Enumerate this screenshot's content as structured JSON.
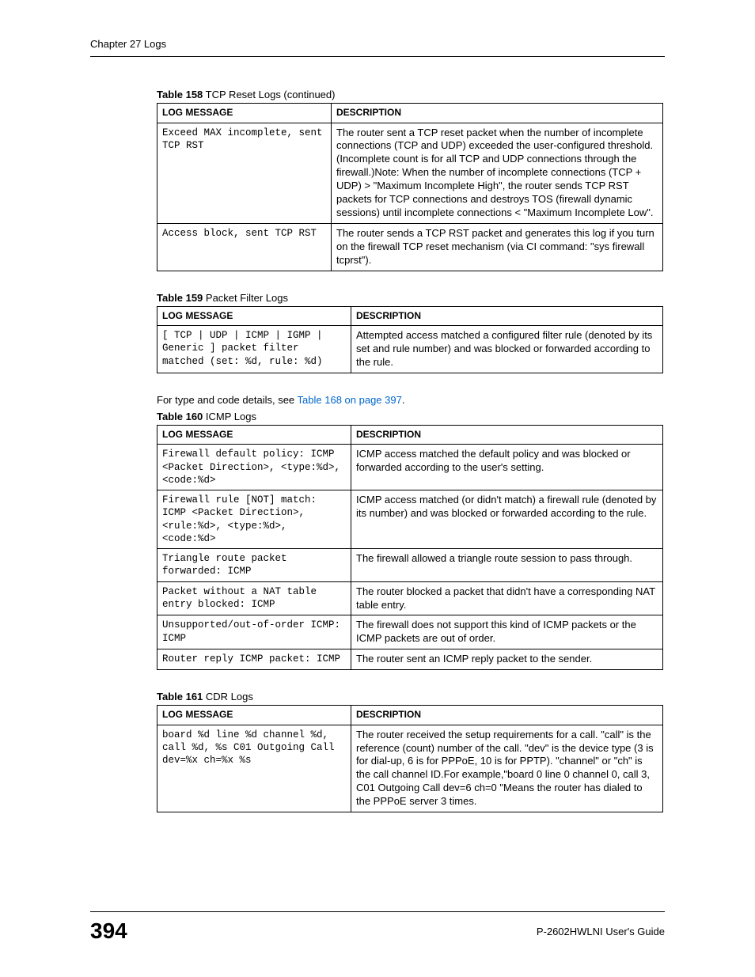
{
  "header": {
    "chapter": "Chapter 27 Logs"
  },
  "tables": {
    "t158": {
      "caption_num": "Table 158",
      "caption_title": "   TCP Reset Logs (continued)",
      "col_msg": "LOG MESSAGE",
      "col_desc": "DESCRIPTION",
      "rows": [
        {
          "msg": "Exceed MAX incomplete, sent TCP RST",
          "desc": "The router sent a TCP reset packet when the number of incomplete connections (TCP and UDP) exceeded the user-configured threshold. (Incomplete count is for all TCP and UDP connections through the firewall.)Note: When the number of incomplete connections (TCP + UDP) > \"Maximum Incomplete High\", the router sends TCP RST packets for TCP connections and destroys TOS (firewall dynamic sessions) until incomplete connections < \"Maximum Incomplete Low\"."
        },
        {
          "msg": "Access block, sent TCP RST",
          "desc": "The router sends a TCP RST packet and generates this log if you turn on the firewall TCP reset mechanism (via CI command: \"sys firewall tcprst\")."
        }
      ]
    },
    "t159": {
      "caption_num": "Table 159",
      "caption_title": "   Packet Filter Logs",
      "col_msg": "LOG MESSAGE",
      "col_desc": "DESCRIPTION",
      "rows": [
        {
          "msg": "[ TCP | UDP | ICMP | IGMP | Generic ] packet filter matched (set: %d, rule: %d)",
          "desc": "Attempted access matched a configured filter rule (denoted by its set and rule number) and was blocked or forwarded according to the rule."
        }
      ]
    },
    "intertext": {
      "pre": "For type and code details, see ",
      "link": "Table 168 on page 397",
      "post": "."
    },
    "t160": {
      "caption_num": "Table 160",
      "caption_title": "   ICMP Logs",
      "col_msg": "LOG MESSAGE",
      "col_desc": "DESCRIPTION",
      "rows": [
        {
          "msg": "Firewall default policy: ICMP <Packet Direction>, <type:%d>, <code:%d>",
          "desc": "ICMP access matched the default policy and was blocked or forwarded according to the user's setting."
        },
        {
          "msg": "Firewall rule [NOT] match: ICMP <Packet Direction>, <rule:%d>, <type:%d>, <code:%d>",
          "desc": "ICMP access matched (or didn't match) a firewall rule (denoted by its number) and was blocked or forwarded according to the rule."
        },
        {
          "msg": "Triangle route packet forwarded: ICMP",
          "desc": "The firewall allowed a triangle route session to pass through."
        },
        {
          "msg": "Packet without a NAT table entry blocked: ICMP",
          "desc": "The router blocked a packet that didn't have a corresponding NAT table entry."
        },
        {
          "msg": "Unsupported/out-of-order ICMP: ICMP",
          "desc": "The firewall does not support this kind of ICMP packets or the ICMP packets are out of order."
        },
        {
          "msg": "Router reply ICMP packet: ICMP",
          "desc": "The router sent an ICMP reply packet to the sender."
        }
      ]
    },
    "t161": {
      "caption_num": "Table 161",
      "caption_title": "   CDR Logs",
      "col_msg": "LOG MESSAGE",
      "col_desc": "DESCRIPTION",
      "rows": [
        {
          "msg": "board %d line %d channel %d, call %d, %s C01 Outgoing Call dev=%x ch=%x %s",
          "desc": "The router received the setup requirements for a call. \"call\" is the reference (count) number of the call. \"dev\" is the device type (3 is for dial-up, 6 is for PPPoE, 10 is for PPTP). \"channel\" or \"ch\" is the call channel ID.For example,\"board 0 line 0 channel 0, call 3, C01 Outgoing Call dev=6 ch=0 \"Means the router has dialed to the PPPoE server 3 times."
        }
      ]
    }
  },
  "footer": {
    "page": "394",
    "guide": "P-2602HWLNI User's Guide"
  }
}
